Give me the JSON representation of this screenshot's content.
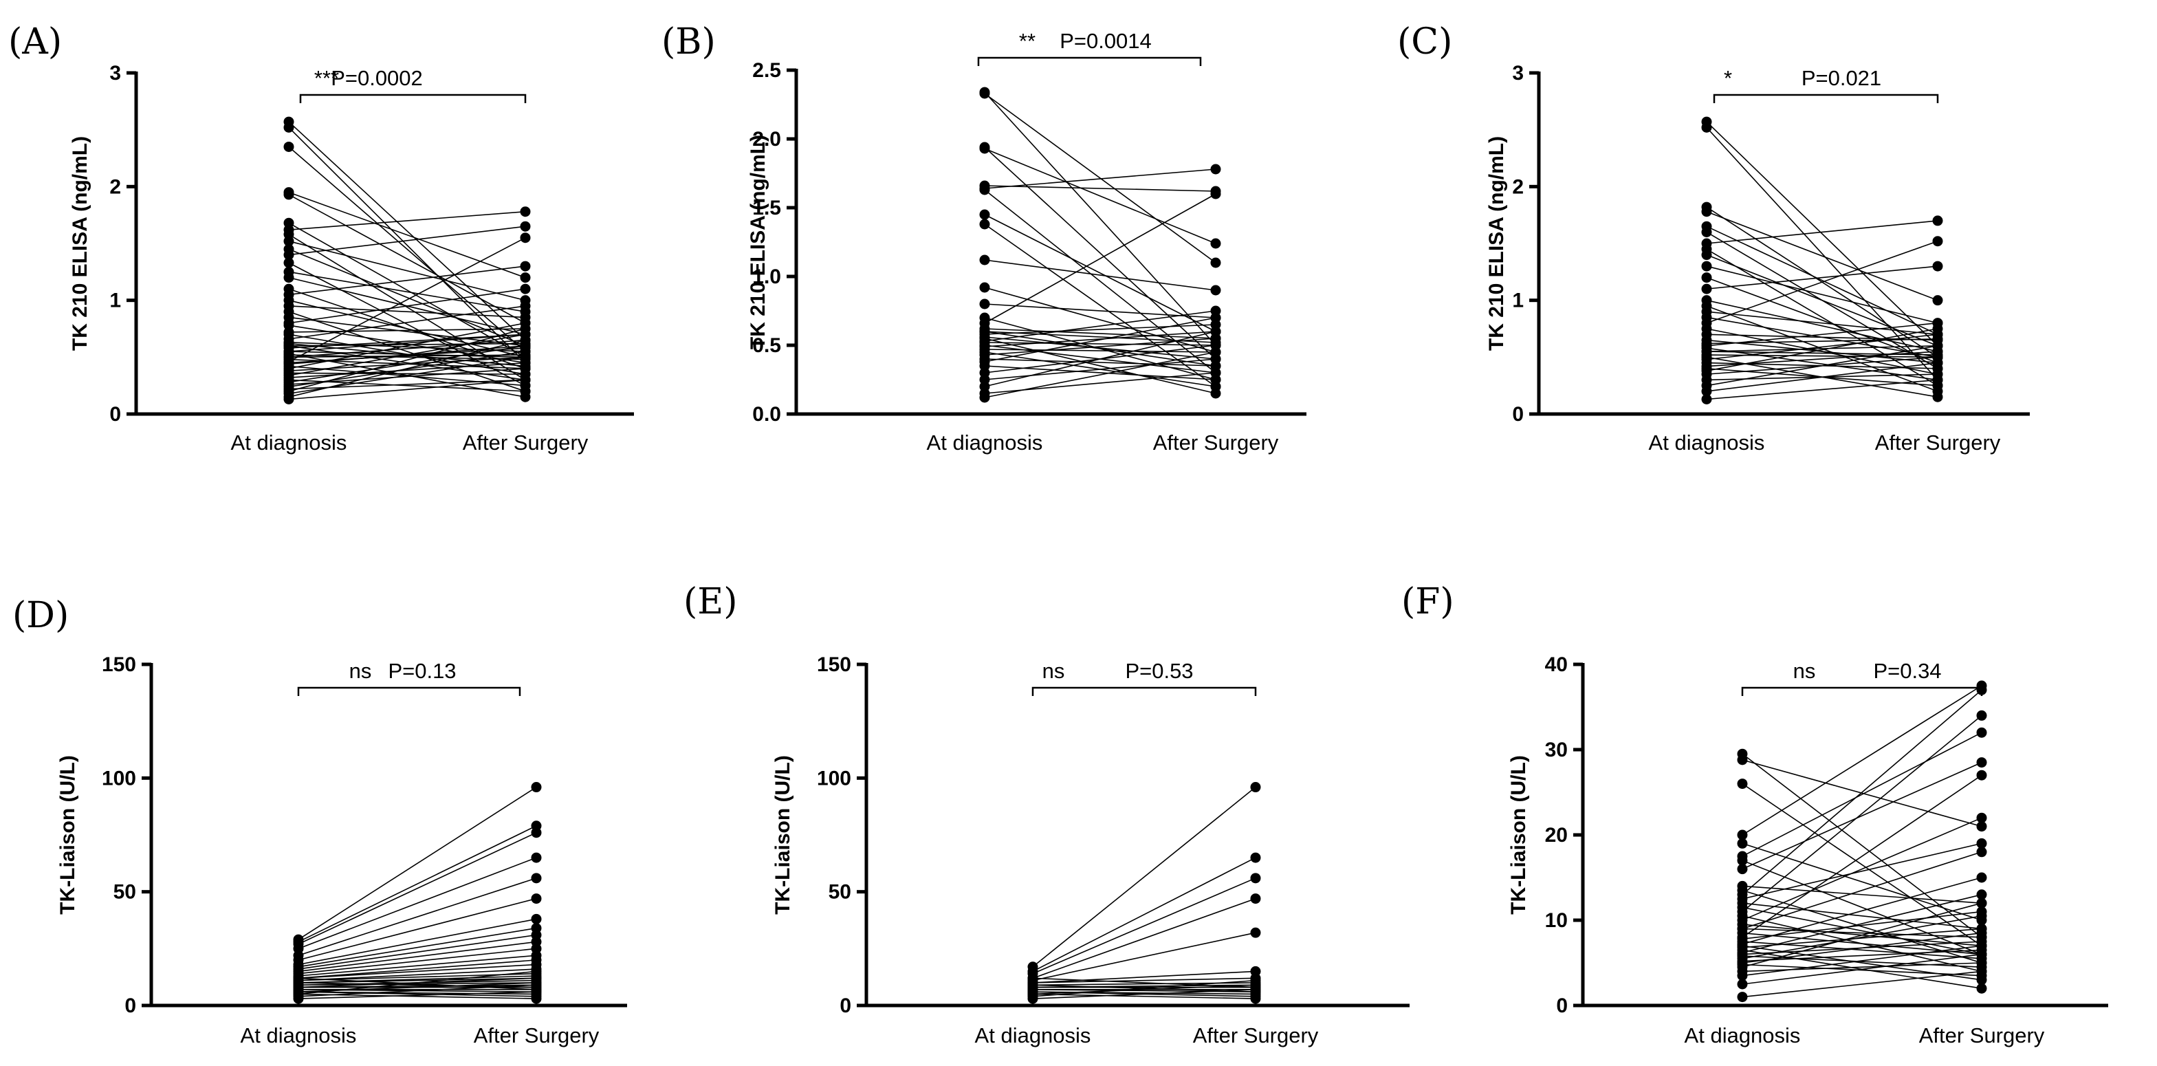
{
  "colors": {
    "ink": "#000000",
    "background": "#ffffff"
  },
  "chart_data": [
    {
      "panel": "(A)",
      "type": "line",
      "ylabel": "TK 210 ELISA (ng/mL)",
      "categories": [
        "At diagnosis",
        "After Surgery"
      ],
      "ylim": [
        0,
        3
      ],
      "yticks": [
        "0",
        "1",
        "2",
        "3"
      ],
      "ytick_values": [
        0,
        1,
        2,
        3
      ],
      "significance": "***",
      "p_value": "P=0.0002",
      "pairs": [
        [
          2.57,
          0.65
        ],
        [
          2.52,
          0.45
        ],
        [
          2.35,
          0.55
        ],
        [
          1.95,
          1.2
        ],
        [
          1.93,
          0.8
        ],
        [
          1.68,
          0.5
        ],
        [
          1.62,
          1.78
        ],
        [
          1.58,
          0.3
        ],
        [
          1.52,
          1.0
        ],
        [
          1.45,
          0.6
        ],
        [
          1.4,
          1.65
        ],
        [
          1.33,
          0.25
        ],
        [
          1.25,
          0.9
        ],
        [
          1.2,
          0.7
        ],
        [
          1.1,
          0.4
        ],
        [
          1.05,
          1.3
        ],
        [
          1.0,
          0.5
        ],
        [
          0.95,
          0.85
        ],
        [
          0.9,
          0.2
        ],
        [
          0.85,
          0.6
        ],
        [
          0.8,
          1.1
        ],
        [
          0.78,
          0.45
        ],
        [
          0.72,
          0.75
        ],
        [
          0.7,
          0.35
        ],
        [
          0.66,
          0.95
        ],
        [
          0.63,
          0.55
        ],
        [
          0.6,
          0.3
        ],
        [
          0.58,
          0.7
        ],
        [
          0.55,
          0.5
        ],
        [
          0.53,
          0.15
        ],
        [
          0.5,
          0.65
        ],
        [
          0.48,
          0.4
        ],
        [
          0.46,
          1.55
        ],
        [
          0.44,
          0.6
        ],
        [
          0.42,
          0.25
        ],
        [
          0.4,
          0.8
        ],
        [
          0.38,
          0.5
        ],
        [
          0.36,
          0.35
        ],
        [
          0.34,
          0.7
        ],
        [
          0.32,
          0.45
        ],
        [
          0.3,
          0.2
        ],
        [
          0.28,
          0.6
        ],
        [
          0.26,
          0.4
        ],
        [
          0.24,
          0.55
        ],
        [
          0.22,
          0.3
        ],
        [
          0.2,
          0.75
        ],
        [
          0.18,
          0.5
        ],
        [
          0.15,
          0.65
        ],
        [
          0.13,
          0.3
        ],
        [
          0.6,
          0.62
        ],
        [
          0.52,
          0.48
        ],
        [
          0.45,
          0.58
        ],
        [
          0.62,
          0.42
        ],
        [
          0.55,
          0.7
        ],
        [
          0.5,
          0.52
        ]
      ]
    },
    {
      "panel": "(B)",
      "type": "line",
      "ylabel": "TK 210 ELISA (ng/mL)",
      "categories": [
        "At diagnosis",
        "After Surgery"
      ],
      "ylim": [
        0,
        2.5
      ],
      "yticks": [
        "0.0",
        "0.5",
        "1.0",
        "1.5",
        "2.0",
        "2.5"
      ],
      "ytick_values": [
        0,
        0.5,
        1.0,
        1.5,
        2.0,
        2.5
      ],
      "significance": "**",
      "p_value": "P=0.0014",
      "pairs": [
        [
          2.34,
          0.5
        ],
        [
          2.33,
          1.1
        ],
        [
          1.94,
          0.4
        ],
        [
          1.93,
          1.24
        ],
        [
          1.66,
          1.62
        ],
        [
          1.64,
          1.78
        ],
        [
          1.63,
          0.3
        ],
        [
          1.45,
          0.6
        ],
        [
          1.38,
          0.2
        ],
        [
          1.12,
          0.9
        ],
        [
          0.92,
          0.45
        ],
        [
          0.8,
          0.7
        ],
        [
          0.7,
          0.25
        ],
        [
          0.66,
          1.6
        ],
        [
          0.62,
          0.55
        ],
        [
          0.6,
          0.35
        ],
        [
          0.58,
          0.65
        ],
        [
          0.56,
          0.4
        ],
        [
          0.55,
          0.15
        ],
        [
          0.53,
          0.75
        ],
        [
          0.52,
          0.5
        ],
        [
          0.5,
          0.3
        ],
        [
          0.49,
          0.6
        ],
        [
          0.47,
          0.45
        ],
        [
          0.45,
          0.2
        ],
        [
          0.43,
          0.55
        ],
        [
          0.4,
          0.35
        ],
        [
          0.38,
          0.7
        ],
        [
          0.35,
          0.25
        ],
        [
          0.3,
          0.5
        ],
        [
          0.25,
          0.4
        ],
        [
          0.2,
          0.6
        ],
        [
          0.15,
          0.3
        ],
        [
          0.12,
          0.45
        ],
        [
          0.6,
          0.52
        ]
      ]
    },
    {
      "panel": "(C)",
      "type": "line",
      "ylabel": "TK 210 ELISA (ng/mL)",
      "categories": [
        "At diagnosis",
        "After Surgery"
      ],
      "ylim": [
        0,
        3
      ],
      "yticks": [
        "0",
        "1",
        "2",
        "3"
      ],
      "ytick_values": [
        0,
        1,
        2,
        3
      ],
      "significance": "*",
      "p_value": "P=0.021",
      "pairs": [
        [
          2.57,
          0.6
        ],
        [
          2.52,
          0.3
        ],
        [
          1.82,
          0.5
        ],
        [
          1.78,
          1.0
        ],
        [
          1.65,
          0.7
        ],
        [
          1.6,
          0.4
        ],
        [
          1.5,
          1.7
        ],
        [
          1.45,
          0.25
        ],
        [
          1.4,
          0.6
        ],
        [
          1.3,
          0.8
        ],
        [
          1.2,
          0.45
        ],
        [
          1.1,
          1.3
        ],
        [
          1.0,
          0.55
        ],
        [
          0.95,
          0.2
        ],
        [
          0.9,
          0.7
        ],
        [
          0.85,
          0.5
        ],
        [
          0.8,
          1.52
        ],
        [
          0.75,
          0.35
        ],
        [
          0.7,
          0.65
        ],
        [
          0.65,
          0.45
        ],
        [
          0.6,
          0.8
        ],
        [
          0.58,
          0.3
        ],
        [
          0.55,
          0.6
        ],
        [
          0.52,
          0.5
        ],
        [
          0.5,
          0.15
        ],
        [
          0.48,
          0.7
        ],
        [
          0.45,
          0.4
        ],
        [
          0.42,
          0.55
        ],
        [
          0.4,
          0.25
        ],
        [
          0.38,
          0.75
        ],
        [
          0.35,
          0.5
        ],
        [
          0.3,
          0.35
        ],
        [
          0.25,
          0.6
        ],
        [
          0.2,
          0.45
        ],
        [
          0.13,
          0.3
        ],
        [
          0.62,
          0.66
        ],
        [
          0.55,
          0.52
        ]
      ]
    },
    {
      "panel": "(D)",
      "type": "line",
      "ylabel": "TK-Liaison (U/L)",
      "categories": [
        "At diagnosis",
        "After Surgery"
      ],
      "ylim": [
        0,
        150
      ],
      "yticks": [
        "0",
        "50",
        "100",
        "150"
      ],
      "ytick_values": [
        0,
        50,
        100,
        150
      ],
      "significance": "ns",
      "p_value": "P=0.13",
      "pairs": [
        [
          29,
          96
        ],
        [
          28,
          79
        ],
        [
          27,
          76
        ],
        [
          25,
          65
        ],
        [
          22,
          56
        ],
        [
          20,
          47
        ],
        [
          18,
          38
        ],
        [
          17,
          34
        ],
        [
          16,
          31
        ],
        [
          15,
          28
        ],
        [
          14,
          25
        ],
        [
          13,
          22
        ],
        [
          12,
          20
        ],
        [
          12,
          18
        ],
        [
          11,
          16
        ],
        [
          11,
          14
        ],
        [
          10,
          13
        ],
        [
          10,
          12
        ],
        [
          9,
          11
        ],
        [
          9,
          10
        ],
        [
          8,
          9
        ],
        [
          8,
          8
        ],
        [
          7,
          7
        ],
        [
          7,
          6
        ],
        [
          6,
          5
        ],
        [
          6,
          4
        ],
        [
          5,
          3
        ],
        [
          5,
          15
        ],
        [
          4,
          9
        ],
        [
          3,
          6
        ],
        [
          8,
          12
        ],
        [
          10,
          8
        ],
        [
          6,
          10
        ],
        [
          12,
          7
        ]
      ]
    },
    {
      "panel": "(E)",
      "type": "line",
      "ylabel": "TK-Liaison (U/L)",
      "categories": [
        "At diagnosis",
        "After Surgery"
      ],
      "ylim": [
        0,
        150
      ],
      "yticks": [
        "0",
        "50",
        "100",
        "150"
      ],
      "ytick_values": [
        0,
        50,
        100,
        150
      ],
      "significance": "ns",
      "p_value": "P=0.53",
      "pairs": [
        [
          17,
          96
        ],
        [
          15,
          65
        ],
        [
          14,
          56
        ],
        [
          12,
          47
        ],
        [
          11,
          32
        ],
        [
          10,
          15
        ],
        [
          10,
          12
        ],
        [
          9,
          10
        ],
        [
          8,
          9
        ],
        [
          8,
          8
        ],
        [
          7,
          7
        ],
        [
          7,
          6
        ],
        [
          6,
          5
        ],
        [
          6,
          4
        ],
        [
          5,
          3
        ],
        [
          4,
          11
        ],
        [
          3,
          7
        ],
        [
          9,
          6
        ],
        [
          12,
          8
        ],
        [
          5,
          9
        ]
      ]
    },
    {
      "panel": "(F)",
      "type": "line",
      "ylabel": "TK-Liaison (U/L)",
      "categories": [
        "At diagnosis",
        "After Surgery"
      ],
      "ylim": [
        0,
        40
      ],
      "yticks": [
        "0",
        "10",
        "20",
        "30",
        "40"
      ],
      "ytick_values": [
        0,
        10,
        20,
        30,
        40
      ],
      "significance": "ns",
      "p_value": "P=0.34",
      "pairs": [
        [
          29.5,
          8
        ],
        [
          28.8,
          21
        ],
        [
          26,
          7
        ],
        [
          20,
          37.5
        ],
        [
          19,
          10
        ],
        [
          17.5,
          32
        ],
        [
          17,
          6
        ],
        [
          16,
          28.5
        ],
        [
          14,
          12
        ],
        [
          13.5,
          5
        ],
        [
          13,
          37
        ],
        [
          12.5,
          19
        ],
        [
          12,
          9
        ],
        [
          11,
          34
        ],
        [
          10.5,
          4
        ],
        [
          10,
          22
        ],
        [
          9.5,
          7
        ],
        [
          9,
          18
        ],
        [
          8.5,
          6
        ],
        [
          8,
          27
        ],
        [
          7.8,
          11
        ],
        [
          7.5,
          5.5
        ],
        [
          7.2,
          15
        ],
        [
          7,
          3
        ],
        [
          6.8,
          9
        ],
        [
          6.5,
          2
        ],
        [
          6.2,
          13
        ],
        [
          6,
          7.5
        ],
        [
          5.8,
          4.5
        ],
        [
          5.5,
          10.5
        ],
        [
          5.2,
          6.5
        ],
        [
          5,
          8.5
        ],
        [
          4.8,
          3.5
        ],
        [
          4.5,
          12
        ],
        [
          4,
          5
        ],
        [
          3.5,
          7
        ],
        [
          2.5,
          6
        ],
        [
          1,
          4
        ],
        [
          9,
          8
        ],
        [
          11.5,
          6
        ]
      ]
    }
  ]
}
